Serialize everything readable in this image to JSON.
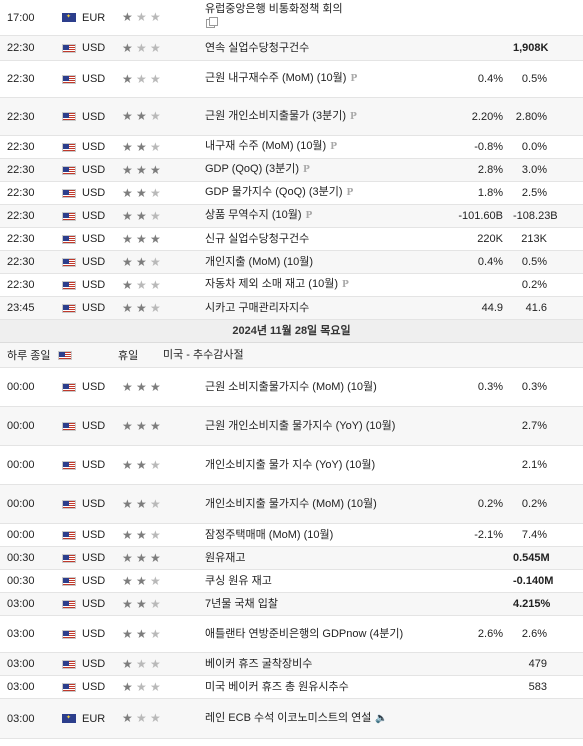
{
  "day_header": "2024년 11월 28일 목요일",
  "rows_before": [
    {
      "time": "17:00",
      "currency": "EUR",
      "flag": "eu",
      "stars": 1,
      "event": "유럽중앙은행 비통화정책 회의",
      "extra": "copy",
      "forecast": "",
      "previous": "",
      "prev_bold": false,
      "h": 36
    },
    {
      "time": "22:30",
      "currency": "USD",
      "flag": "us",
      "stars": 1,
      "event": "연속 실업수당청구건수",
      "extra": "",
      "forecast": "",
      "previous": "1,908K",
      "prev_bold": true,
      "h": 25
    },
    {
      "time": "22:30",
      "currency": "USD",
      "flag": "us",
      "stars": 1,
      "event": "근원 내구재수주 (MoM) (10월)",
      "extra": "p",
      "forecast": "0.4%",
      "previous": "0.5%",
      "prev_bold": false,
      "h": 37
    },
    {
      "time": "22:30",
      "currency": "USD",
      "flag": "us",
      "stars": 2,
      "event": "근원 개인소비지출물가 (3분기)",
      "extra": "p",
      "forecast": "2.20%",
      "previous": "2.80%",
      "prev_bold": false,
      "h": 38
    },
    {
      "time": "22:30",
      "currency": "USD",
      "flag": "us",
      "stars": 2,
      "event": "내구재 수주 (MoM) (10월)",
      "extra": "p",
      "forecast": "-0.8%",
      "previous": "0.0%",
      "prev_bold": false,
      "h": 23
    },
    {
      "time": "22:30",
      "currency": "USD",
      "flag": "us",
      "stars": 3,
      "event": "GDP (QoQ) (3분기)",
      "extra": "p",
      "forecast": "2.8%",
      "previous": "3.0%",
      "prev_bold": false,
      "h": 23
    },
    {
      "time": "22:30",
      "currency": "USD",
      "flag": "us",
      "stars": 2,
      "event": "GDP 물가지수 (QoQ) (3분기)",
      "extra": "p",
      "forecast": "1.8%",
      "previous": "2.5%",
      "prev_bold": false,
      "h": 23
    },
    {
      "time": "22:30",
      "currency": "USD",
      "flag": "us",
      "stars": 2,
      "event": "상품 무역수지 (10월)",
      "extra": "p",
      "forecast": "-101.60B",
      "previous": "-108.23B",
      "prev_bold": false,
      "h": 23
    },
    {
      "time": "22:30",
      "currency": "USD",
      "flag": "us",
      "stars": 3,
      "event": "신규 실업수당청구건수",
      "extra": "",
      "forecast": "220K",
      "previous": "213K",
      "prev_bold": false,
      "h": 23
    },
    {
      "time": "22:30",
      "currency": "USD",
      "flag": "us",
      "stars": 2,
      "event": "개인지출 (MoM) (10월)",
      "extra": "",
      "forecast": "0.4%",
      "previous": "0.5%",
      "prev_bold": false,
      "h": 23
    },
    {
      "time": "22:30",
      "currency": "USD",
      "flag": "us",
      "stars": 1,
      "event": "자동차 제외 소매 재고 (10월)",
      "extra": "p",
      "forecast": "",
      "previous": "0.2%",
      "prev_bold": false,
      "h": 23
    },
    {
      "time": "23:45",
      "currency": "USD",
      "flag": "us",
      "stars": 2,
      "event": "시카고 구매관리자지수",
      "extra": "",
      "forecast": "44.9",
      "previous": "41.6",
      "prev_bold": false,
      "h": 23
    }
  ],
  "holiday_row": {
    "time": "하루 종일",
    "label": "휴일",
    "event": "미국 - 추수감사절"
  },
  "rows_after": [
    {
      "time": "00:00",
      "currency": "USD",
      "flag": "us",
      "stars": 3,
      "event": "근원 소비지출물가지수 (MoM) (10월)",
      "extra": "",
      "forecast": "0.3%",
      "previous": "0.3%",
      "prev_bold": false,
      "h": 39
    },
    {
      "time": "00:00",
      "currency": "USD",
      "flag": "us",
      "stars": 3,
      "event": "근원 개인소비지출 물가지수 (YoY) (10월)",
      "extra": "",
      "forecast": "",
      "previous": "2.7%",
      "prev_bold": false,
      "h": 39
    },
    {
      "time": "00:00",
      "currency": "USD",
      "flag": "us",
      "stars": 2,
      "event": "개인소비지출 물가 지수 (YoY) (10월)",
      "extra": "",
      "forecast": "",
      "previous": "2.1%",
      "prev_bold": false,
      "h": 39
    },
    {
      "time": "00:00",
      "currency": "USD",
      "flag": "us",
      "stars": 2,
      "event": "개인소비지출 물가지수 (MoM) (10월)",
      "extra": "",
      "forecast": "0.2%",
      "previous": "0.2%",
      "prev_bold": false,
      "h": 39
    },
    {
      "time": "00:00",
      "currency": "USD",
      "flag": "us",
      "stars": 2,
      "event": "잠정주택매매 (MoM) (10월)",
      "extra": "",
      "forecast": "-2.1%",
      "previous": "7.4%",
      "prev_bold": false,
      "h": 23
    },
    {
      "time": "00:30",
      "currency": "USD",
      "flag": "us",
      "stars": 3,
      "event": "원유재고",
      "extra": "",
      "forecast": "",
      "previous": "0.545M",
      "prev_bold": true,
      "h": 23
    },
    {
      "time": "00:30",
      "currency": "USD",
      "flag": "us",
      "stars": 2,
      "event": "쿠싱 원유 재고",
      "extra": "",
      "forecast": "",
      "previous": "-0.140M",
      "prev_bold": true,
      "h": 23
    },
    {
      "time": "03:00",
      "currency": "USD",
      "flag": "us",
      "stars": 2,
      "event": "7년물 국채 입찰",
      "extra": "",
      "forecast": "",
      "previous": "4.215%",
      "prev_bold": true,
      "h": 23
    },
    {
      "time": "03:00",
      "currency": "USD",
      "flag": "us",
      "stars": 2,
      "event": "애틀랜타 연방준비은행의 GDPnow (4분기)",
      "extra": "",
      "forecast": "2.6%",
      "previous": "2.6%",
      "prev_bold": false,
      "h": 37
    },
    {
      "time": "03:00",
      "currency": "USD",
      "flag": "us",
      "stars": 1,
      "event": "베이커 휴즈 굴착장비수",
      "extra": "",
      "forecast": "",
      "previous": "479",
      "prev_bold": false,
      "h": 23
    },
    {
      "time": "03:00",
      "currency": "USD",
      "flag": "us",
      "stars": 1,
      "event": "미국 베이커 휴즈 총 원유시추수",
      "extra": "",
      "forecast": "",
      "previous": "583",
      "prev_bold": false,
      "h": 23
    },
    {
      "time": "03:00",
      "currency": "EUR",
      "flag": "eu",
      "stars": 1,
      "event": "레인 ECB 수석 이코노미스트의 연설",
      "extra": "speaker",
      "forecast": "",
      "previous": "",
      "prev_bold": false,
      "h": 40
    }
  ]
}
